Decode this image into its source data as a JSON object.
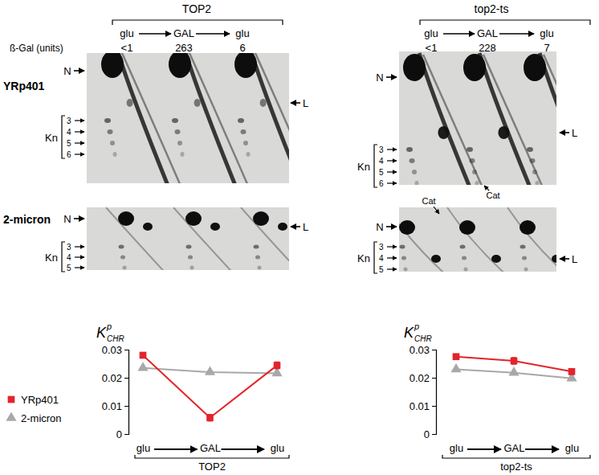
{
  "header": {
    "beta_gal_label": "ß-Gal (units)",
    "strains": [
      {
        "title": "TOP2",
        "conditions": [
          "glu",
          "GAL",
          "glu"
        ],
        "beta_gal": [
          "<1",
          263,
          6
        ]
      },
      {
        "title": "top2-ts",
        "conditions": [
          "glu",
          "GAL",
          "glu"
        ],
        "beta_gal": [
          "<1",
          228,
          7
        ]
      }
    ]
  },
  "gels": {
    "rows": [
      {
        "label": "YRp401",
        "kn": [
          3,
          4,
          5,
          6
        ]
      },
      {
        "label": "2-micron",
        "kn": [
          3,
          4,
          5
        ]
      }
    ],
    "n_label": "N",
    "l_label": "L",
    "kn_label": "Kn",
    "cat_label": "Cat"
  },
  "chart_data": [
    {
      "type": "line",
      "categories": [
        "glu",
        "GAL",
        "glu"
      ],
      "xlabel": "TOP2",
      "ylabel": "K",
      "ylabel_sup": "p",
      "ylabel_sub": "CHR",
      "ylim": [
        0,
        0.03
      ],
      "yticks": [
        0,
        0.01,
        0.02,
        0.03
      ],
      "legend": "left",
      "series": [
        {
          "name": "YRp401",
          "color": "#e3242b",
          "marker": "square",
          "values": [
            0.028,
            0.0058,
            0.0244
          ],
          "errors": [
            0.0008,
            0.0012,
            0.0012
          ]
        },
        {
          "name": "2-micron",
          "color": "#a8a8a8",
          "marker": "triangle",
          "values": [
            0.0235,
            0.022,
            0.0216
          ],
          "errors": [
            0.0004,
            0.0004,
            0.0004
          ]
        }
      ]
    },
    {
      "type": "line",
      "categories": [
        "glu",
        "GAL",
        "glu"
      ],
      "xlabel": "top2-ts",
      "ylabel": "K",
      "ylabel_sup": "p",
      "ylabel_sub": "CHR",
      "ylim": [
        0,
        0.03
      ],
      "yticks": [
        0,
        0.01,
        0.02,
        0.03
      ],
      "series": [
        {
          "name": "YRp401",
          "color": "#e3242b",
          "marker": "square",
          "values": [
            0.0275,
            0.026,
            0.0222
          ],
          "errors": [
            0.0009,
            0.0012,
            0.001
          ]
        },
        {
          "name": "2-micron",
          "color": "#a8a8a8",
          "marker": "triangle",
          "values": [
            0.023,
            0.0218,
            0.0198
          ],
          "errors": [
            0.0004,
            0.0004,
            0.0004
          ]
        }
      ]
    }
  ]
}
